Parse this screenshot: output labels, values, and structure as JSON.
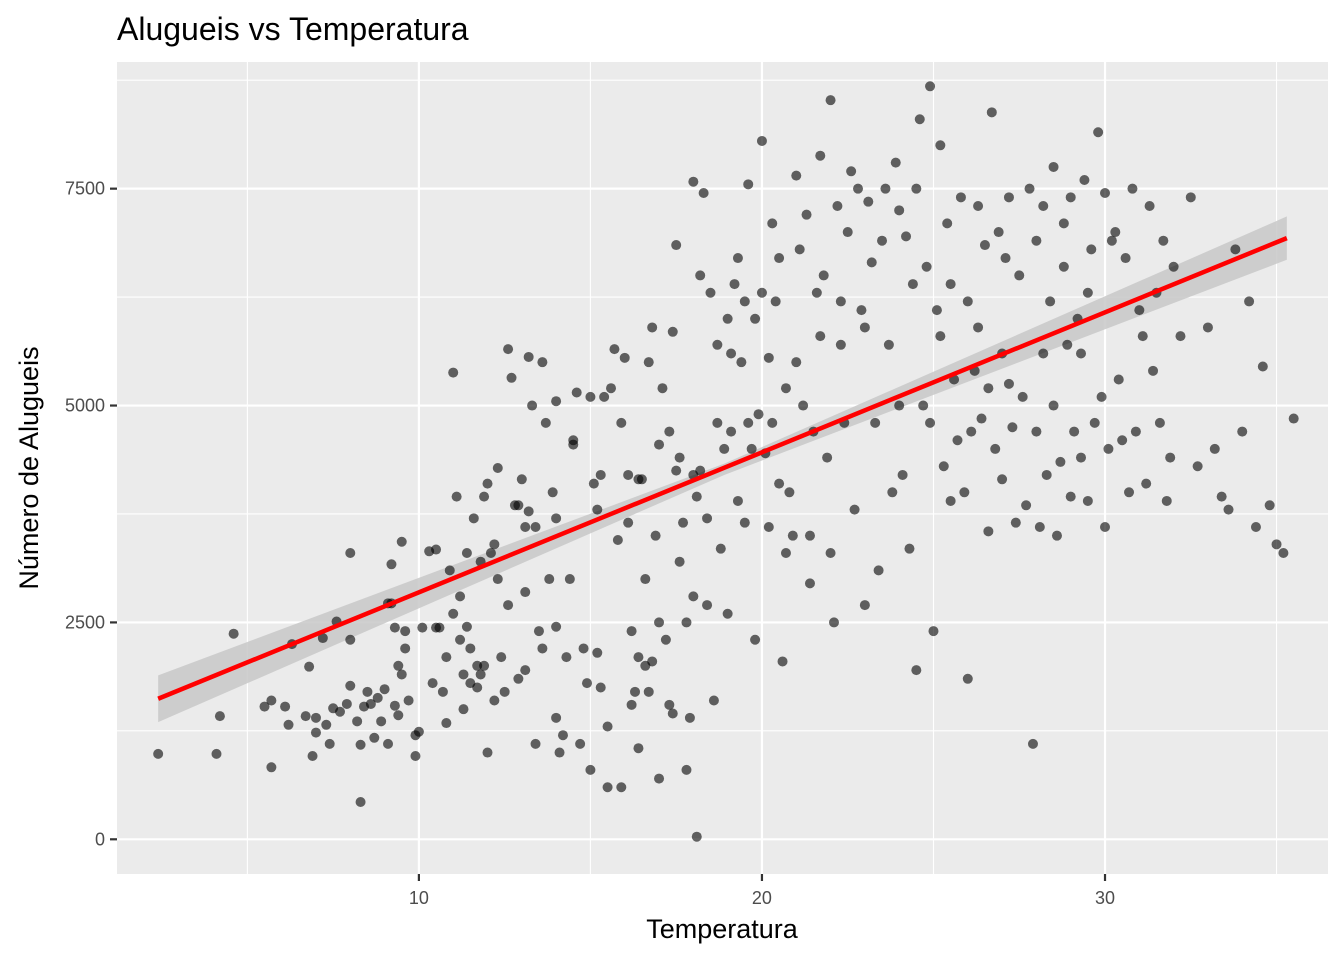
{
  "chart_data": {
    "type": "scatter",
    "title": "Alugueis vs Temperatura",
    "xlabel": "Temperatura",
    "ylabel": "Número de Alugueis",
    "xlim": [
      1.2,
      36.5
    ],
    "ylim": [
      -400,
      8960
    ],
    "x_ticks": [
      10,
      20,
      30
    ],
    "x_tick_labels": [
      "10",
      "20",
      "30"
    ],
    "y_ticks": [
      0,
      2500,
      5000,
      7500
    ],
    "y_tick_labels": [
      "0",
      "2500",
      "5000",
      "7500"
    ],
    "grid": true,
    "legend": "none",
    "point_color": "#000000",
    "point_opacity": 0.6,
    "trend_color": "#ff0000",
    "ribbon_color": "#c8c8c8",
    "trend_line": {
      "type": "linear",
      "x": [
        2.4,
        35.3
      ],
      "y": [
        1620,
        6930
      ]
    },
    "confidence_band": {
      "x": [
        2.4,
        18.9,
        35.3
      ],
      "upper": [
        1890,
        4330,
        7180
      ],
      "lower": [
        1350,
        4200,
        6680
      ]
    },
    "points": [
      [
        2.4,
        985
      ],
      [
        4.1,
        985
      ],
      [
        4.2,
        1420
      ],
      [
        4.6,
        2370
      ],
      [
        5.5,
        1530
      ],
      [
        5.7,
        1600
      ],
      [
        6.1,
        1530
      ],
      [
        6.2,
        1320
      ],
      [
        6.3,
        2250
      ],
      [
        5.7,
        830
      ],
      [
        6.7,
        1420
      ],
      [
        6.8,
        1990
      ],
      [
        6.9,
        960
      ],
      [
        7.0,
        1400
      ],
      [
        7.0,
        1230
      ],
      [
        7.2,
        2320
      ],
      [
        7.3,
        1320
      ],
      [
        7.4,
        1100
      ],
      [
        7.5,
        1510
      ],
      [
        7.6,
        2510
      ],
      [
        7.7,
        1470
      ],
      [
        7.9,
        1560
      ],
      [
        8.0,
        1770
      ],
      [
        8.0,
        2300
      ],
      [
        8.0,
        3300
      ],
      [
        8.2,
        1360
      ],
      [
        8.3,
        1090
      ],
      [
        8.3,
        430
      ],
      [
        8.4,
        1530
      ],
      [
        8.5,
        1700
      ],
      [
        8.6,
        1560
      ],
      [
        8.7,
        1170
      ],
      [
        8.8,
        1630
      ],
      [
        8.9,
        1360
      ],
      [
        9.0,
        1730
      ],
      [
        9.1,
        2720
      ],
      [
        9.1,
        1100
      ],
      [
        9.2,
        2720
      ],
      [
        9.2,
        3170
      ],
      [
        9.3,
        1540
      ],
      [
        9.3,
        2440
      ],
      [
        9.4,
        1430
      ],
      [
        9.4,
        2000
      ],
      [
        9.5,
        1900
      ],
      [
        9.5,
        3430
      ],
      [
        9.6,
        2200
      ],
      [
        9.6,
        2400
      ],
      [
        9.7,
        1600
      ],
      [
        9.9,
        1200
      ],
      [
        9.9,
        960
      ],
      [
        10.0,
        1240
      ],
      [
        10.1,
        2440
      ],
      [
        10.3,
        3320
      ],
      [
        10.4,
        1800
      ],
      [
        10.5,
        3340
      ],
      [
        10.5,
        2440
      ],
      [
        10.6,
        2440
      ],
      [
        10.7,
        1700
      ],
      [
        10.8,
        1340
      ],
      [
        10.8,
        2100
      ],
      [
        10.9,
        3100
      ],
      [
        11.0,
        5380
      ],
      [
        11.0,
        2600
      ],
      [
        11.1,
        3950
      ],
      [
        11.2,
        2300
      ],
      [
        11.2,
        2800
      ],
      [
        11.3,
        1900
      ],
      [
        11.3,
        1500
      ],
      [
        11.4,
        2450
      ],
      [
        11.4,
        3300
      ],
      [
        11.5,
        1800
      ],
      [
        11.5,
        2200
      ],
      [
        11.6,
        3700
      ],
      [
        11.7,
        1750
      ],
      [
        11.7,
        2000
      ],
      [
        11.8,
        3200
      ],
      [
        11.8,
        1900
      ],
      [
        11.9,
        2000
      ],
      [
        11.9,
        3950
      ],
      [
        12.0,
        4100
      ],
      [
        12.1,
        3300
      ],
      [
        12.2,
        3400
      ],
      [
        12.2,
        1600
      ],
      [
        12.3,
        3000
      ],
      [
        12.3,
        4280
      ],
      [
        12.4,
        2100
      ],
      [
        12.5,
        1700
      ],
      [
        12.6,
        5650
      ],
      [
        12.6,
        2700
      ],
      [
        12.7,
        5320
      ],
      [
        12.8,
        3850
      ],
      [
        12.9,
        1850
      ],
      [
        12.9,
        3850
      ],
      [
        13.0,
        4150
      ],
      [
        13.1,
        1950
      ],
      [
        13.1,
        2850
      ],
      [
        13.1,
        3600
      ],
      [
        13.2,
        5560
      ],
      [
        13.2,
        3780
      ],
      [
        13.3,
        5000
      ],
      [
        13.4,
        1100
      ],
      [
        13.4,
        3600
      ],
      [
        13.5,
        2400
      ],
      [
        13.6,
        5500
      ],
      [
        13.6,
        2200
      ],
      [
        13.7,
        4800
      ],
      [
        13.8,
        3000
      ],
      [
        13.9,
        4000
      ],
      [
        14.0,
        3700
      ],
      [
        14.0,
        5050
      ],
      [
        14.0,
        1400
      ],
      [
        14.1,
        1000
      ],
      [
        14.2,
        1200
      ],
      [
        14.3,
        2100
      ],
      [
        14.4,
        3000
      ],
      [
        14.5,
        4600
      ],
      [
        14.5,
        4550
      ],
      [
        14.6,
        5150
      ],
      [
        14.7,
        1100
      ],
      [
        14.8,
        2200
      ],
      [
        14.9,
        1800
      ],
      [
        15.0,
        5100
      ],
      [
        15.1,
        4100
      ],
      [
        15.2,
        3800
      ],
      [
        15.2,
        2150
      ],
      [
        15.3,
        4200
      ],
      [
        15.3,
        1750
      ],
      [
        15.4,
        5100
      ],
      [
        15.5,
        1300
      ],
      [
        15.6,
        5200
      ],
      [
        15.7,
        5650
      ],
      [
        15.8,
        3450
      ],
      [
        15.9,
        4800
      ],
      [
        16.0,
        5550
      ],
      [
        16.1,
        4200
      ],
      [
        16.1,
        3650
      ],
      [
        16.2,
        1550
      ],
      [
        16.2,
        2400
      ],
      [
        16.3,
        1700
      ],
      [
        16.4,
        4150
      ],
      [
        16.4,
        2100
      ],
      [
        16.5,
        4150
      ],
      [
        16.6,
        2000
      ],
      [
        16.6,
        3000
      ],
      [
        16.7,
        5500
      ],
      [
        16.8,
        5900
      ],
      [
        16.8,
        2050
      ],
      [
        16.9,
        3500
      ],
      [
        17.0,
        4550
      ],
      [
        17.0,
        2500
      ],
      [
        17.1,
        5200
      ],
      [
        17.2,
        2300
      ],
      [
        17.3,
        4700
      ],
      [
        17.3,
        1550
      ],
      [
        17.4,
        1450
      ],
      [
        17.4,
        5850
      ],
      [
        17.5,
        4250
      ],
      [
        17.5,
        6850
      ],
      [
        17.6,
        4400
      ],
      [
        17.6,
        3200
      ],
      [
        17.7,
        3650
      ],
      [
        17.8,
        2500
      ],
      [
        17.9,
        1400
      ],
      [
        18.0,
        7580
      ],
      [
        18.0,
        4200
      ],
      [
        18.0,
        2800
      ],
      [
        18.1,
        3950
      ],
      [
        18.2,
        6500
      ],
      [
        18.2,
        4250
      ],
      [
        18.3,
        7450
      ],
      [
        18.4,
        3700
      ],
      [
        18.4,
        2700
      ],
      [
        18.5,
        6300
      ],
      [
        18.6,
        1600
      ],
      [
        18.7,
        4800
      ],
      [
        18.7,
        5700
      ],
      [
        18.8,
        3350
      ],
      [
        18.9,
        4500
      ],
      [
        19.0,
        6000
      ],
      [
        19.0,
        2600
      ],
      [
        19.1,
        5600
      ],
      [
        19.1,
        4700
      ],
      [
        19.2,
        6400
      ],
      [
        19.3,
        6700
      ],
      [
        19.3,
        3900
      ],
      [
        19.4,
        5500
      ],
      [
        19.5,
        6200
      ],
      [
        19.5,
        3650
      ],
      [
        19.6,
        7550
      ],
      [
        19.6,
        4800
      ],
      [
        19.7,
        4500
      ],
      [
        19.8,
        2300
      ],
      [
        19.8,
        6000
      ],
      [
        19.9,
        4900
      ],
      [
        20.0,
        6300
      ],
      [
        20.0,
        8050
      ],
      [
        20.1,
        4450
      ],
      [
        20.2,
        3600
      ],
      [
        20.2,
        5550
      ],
      [
        20.3,
        7100
      ],
      [
        20.3,
        4800
      ],
      [
        20.4,
        6200
      ],
      [
        20.5,
        6700
      ],
      [
        20.5,
        4100
      ],
      [
        20.6,
        2050
      ],
      [
        20.7,
        3300
      ],
      [
        20.7,
        5200
      ],
      [
        20.8,
        4000
      ],
      [
        20.9,
        3500
      ],
      [
        21.0,
        5500
      ],
      [
        21.0,
        7650
      ],
      [
        21.1,
        6800
      ],
      [
        21.2,
        5000
      ],
      [
        21.3,
        7200
      ],
      [
        21.4,
        3500
      ],
      [
        21.4,
        2950
      ],
      [
        21.5,
        4700
      ],
      [
        21.6,
        6300
      ],
      [
        21.7,
        5800
      ],
      [
        21.7,
        7880
      ],
      [
        21.8,
        6500
      ],
      [
        21.9,
        4400
      ],
      [
        22.0,
        8520
      ],
      [
        22.0,
        3300
      ],
      [
        22.1,
        2500
      ],
      [
        22.2,
        7300
      ],
      [
        22.3,
        6200
      ],
      [
        22.3,
        5700
      ],
      [
        22.4,
        4800
      ],
      [
        22.5,
        7000
      ],
      [
        22.6,
        7700
      ],
      [
        22.7,
        3800
      ],
      [
        22.8,
        7500
      ],
      [
        22.9,
        6100
      ],
      [
        23.0,
        5900
      ],
      [
        23.0,
        2700
      ],
      [
        23.1,
        7350
      ],
      [
        23.2,
        6650
      ],
      [
        23.3,
        4800
      ],
      [
        23.4,
        3100
      ],
      [
        23.5,
        6900
      ],
      [
        23.6,
        7500
      ],
      [
        23.7,
        5700
      ],
      [
        23.8,
        4000
      ],
      [
        23.9,
        7800
      ],
      [
        24.0,
        5000
      ],
      [
        24.0,
        7250
      ],
      [
        24.1,
        4200
      ],
      [
        24.2,
        6950
      ],
      [
        24.3,
        3350
      ],
      [
        24.4,
        6400
      ],
      [
        24.5,
        7500
      ],
      [
        24.5,
        1950
      ],
      [
        24.6,
        8300
      ],
      [
        24.7,
        5000
      ],
      [
        24.8,
        6600
      ],
      [
        24.9,
        8680
      ],
      [
        24.9,
        4800
      ],
      [
        25.0,
        2400
      ],
      [
        25.1,
        6100
      ],
      [
        25.2,
        5800
      ],
      [
        25.2,
        8000
      ],
      [
        25.3,
        4300
      ],
      [
        25.4,
        7100
      ],
      [
        25.5,
        3900
      ],
      [
        25.5,
        6400
      ],
      [
        25.6,
        5300
      ],
      [
        25.7,
        4600
      ],
      [
        25.8,
        7400
      ],
      [
        25.9,
        4000
      ],
      [
        26.0,
        6200
      ],
      [
        26.0,
        1850
      ],
      [
        26.1,
        4700
      ],
      [
        26.2,
        5400
      ],
      [
        26.3,
        7300
      ],
      [
        26.3,
        5900
      ],
      [
        26.4,
        4850
      ],
      [
        26.5,
        6850
      ],
      [
        26.6,
        5200
      ],
      [
        26.6,
        3550
      ],
      [
        26.7,
        8380
      ],
      [
        26.8,
        4500
      ],
      [
        26.9,
        7000
      ],
      [
        27.0,
        5600
      ],
      [
        27.0,
        4150
      ],
      [
        27.1,
        6700
      ],
      [
        27.2,
        5250
      ],
      [
        27.2,
        7400
      ],
      [
        27.3,
        4750
      ],
      [
        27.4,
        3650
      ],
      [
        27.5,
        6500
      ],
      [
        27.6,
        5100
      ],
      [
        27.7,
        3850
      ],
      [
        27.8,
        7500
      ],
      [
        27.9,
        1100
      ],
      [
        28.0,
        6900
      ],
      [
        28.0,
        4700
      ],
      [
        28.1,
        3600
      ],
      [
        28.2,
        7300
      ],
      [
        28.2,
        5600
      ],
      [
        28.3,
        4200
      ],
      [
        28.4,
        6200
      ],
      [
        28.5,
        7750
      ],
      [
        28.5,
        5000
      ],
      [
        28.6,
        3500
      ],
      [
        28.7,
        4350
      ],
      [
        28.8,
        6600
      ],
      [
        28.8,
        7100
      ],
      [
        28.9,
        5700
      ],
      [
        29.0,
        3950
      ],
      [
        29.0,
        7400
      ],
      [
        29.1,
        4700
      ],
      [
        29.2,
        6000
      ],
      [
        29.3,
        5600
      ],
      [
        29.3,
        4400
      ],
      [
        29.4,
        7600
      ],
      [
        29.5,
        6300
      ],
      [
        29.5,
        3900
      ],
      [
        29.6,
        6800
      ],
      [
        29.7,
        4800
      ],
      [
        29.8,
        8150
      ],
      [
        29.9,
        5100
      ],
      [
        30.0,
        7450
      ],
      [
        30.0,
        3600
      ],
      [
        30.1,
        4500
      ],
      [
        30.2,
        6900
      ],
      [
        30.3,
        7000
      ],
      [
        30.4,
        5300
      ],
      [
        30.5,
        4600
      ],
      [
        30.6,
        6700
      ],
      [
        30.7,
        4000
      ],
      [
        30.8,
        7500
      ],
      [
        30.9,
        4700
      ],
      [
        31.0,
        6100
      ],
      [
        31.1,
        5800
      ],
      [
        31.2,
        4100
      ],
      [
        31.3,
        7300
      ],
      [
        31.4,
        5400
      ],
      [
        31.5,
        6300
      ],
      [
        31.6,
        4800
      ],
      [
        31.7,
        6900
      ],
      [
        31.8,
        3900
      ],
      [
        31.9,
        4400
      ],
      [
        32.0,
        6600
      ],
      [
        32.2,
        5800
      ],
      [
        32.5,
        7400
      ],
      [
        32.7,
        4300
      ],
      [
        33.0,
        5900
      ],
      [
        33.2,
        4500
      ],
      [
        33.4,
        3950
      ],
      [
        33.6,
        3800
      ],
      [
        33.8,
        6800
      ],
      [
        34.0,
        4700
      ],
      [
        34.2,
        6200
      ],
      [
        34.4,
        3600
      ],
      [
        34.6,
        5450
      ],
      [
        34.8,
        3850
      ],
      [
        35.0,
        3400
      ],
      [
        35.2,
        3300
      ],
      [
        35.5,
        4850
      ],
      [
        18.1,
        30
      ],
      [
        17.8,
        800
      ],
      [
        15.9,
        600
      ],
      [
        16.4,
        1050
      ],
      [
        15.0,
        800
      ],
      [
        15.5,
        600
      ],
      [
        17.0,
        700
      ],
      [
        16.7,
        1700
      ],
      [
        14.0,
        2450
      ],
      [
        12.0,
        1000
      ]
    ]
  }
}
